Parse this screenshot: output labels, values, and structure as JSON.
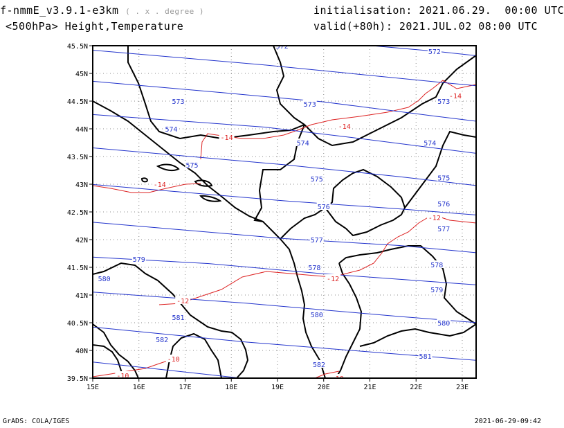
{
  "header": {
    "model": "f-nmmE_v3.9.1-e3km",
    "projection_note": "( . x . degree )",
    "field": "<500hPa> Height,Temperature",
    "init_label": "initialisation:",
    "init_value": "2021.06.29.  00:00 UTC",
    "valid_label": "valid(+80h):",
    "valid_value": "2021.JUL.02 08:00 UTC"
  },
  "footer": {
    "credit": "GrADS: COLA/IGES",
    "timestamp": "2021-06-29-09:42"
  },
  "map": {
    "lon_ticks": [
      "15E",
      "16E",
      "17E",
      "18E",
      "19E",
      "20E",
      "21E",
      "22E",
      "23E"
    ],
    "lat_ticks": [
      "39.5N",
      "40N",
      "40.5N",
      "41N",
      "41.5N",
      "42N",
      "42.5N",
      "43N",
      "43.5N",
      "44N",
      "44.5N",
      "45N",
      "45.5N"
    ],
    "colors": {
      "height": "#2233cc",
      "temperature": "#dd2222",
      "border": "#000000",
      "grid": "#888888"
    },
    "height_contours": [
      {
        "label": "572",
        "pts": [
          [
            0,
            0.06
          ],
          [
            0.4,
            0.02
          ],
          [
            0.9,
            -0.01
          ],
          [
            1,
            -0.03
          ]
        ],
        "labels_at": [
          [
            4.1,
            45.5
          ],
          [
            7.4,
            45.4
          ]
        ]
      },
      {
        "label": "573",
        "pts": [
          [
            0,
            0.1
          ],
          [
            0.45,
            0.08
          ],
          [
            0.9,
            0.02
          ],
          [
            1,
            0.01
          ]
        ],
        "labels_at": [
          [
            1.85,
            44.5
          ],
          [
            4.7,
            44.45
          ],
          [
            7.6,
            44.5
          ]
        ]
      },
      {
        "label": "574",
        "pts": [
          [
            0,
            0.12
          ],
          [
            0.35,
            0.1
          ],
          [
            0.6,
            0.08
          ],
          [
            0.9,
            -0.02
          ],
          [
            1,
            -0.05
          ]
        ],
        "labels_at": [
          [
            1.7,
            44.0
          ],
          [
            4.55,
            43.75
          ],
          [
            7.3,
            43.75
          ]
        ]
      },
      {
        "label": "575",
        "pts": [
          [
            0,
            0.1
          ],
          [
            0.45,
            0.12
          ],
          [
            0.7,
            0.05
          ],
          [
            1,
            -0.05
          ]
        ],
        "labels_at": [
          [
            2.15,
            43.35
          ],
          [
            4.85,
            43.1
          ],
          [
            7.6,
            43.12
          ]
        ]
      },
      {
        "label": "576",
        "pts": [
          [
            0,
            0.08
          ],
          [
            0.5,
            0.05
          ],
          [
            0.8,
            0.0
          ],
          [
            1,
            -0.05
          ]
        ],
        "labels_at": [
          [
            5.0,
            42.6
          ],
          [
            7.6,
            42.65
          ]
        ]
      },
      {
        "label": "577",
        "pts": [
          [
            0,
            0.0
          ],
          [
            0.5,
            -0.02
          ],
          [
            0.8,
            0.0
          ],
          [
            1,
            0.0
          ]
        ],
        "labels_at": [
          [
            4.85,
            42.0
          ],
          [
            7.6,
            42.2
          ]
        ]
      },
      {
        "label": "578",
        "pts": [
          [
            0,
            -0.1
          ],
          [
            0.5,
            -0.12
          ],
          [
            0.8,
            -0.08
          ],
          [
            1,
            -0.1
          ]
        ],
        "labels_at": [
          [
            4.8,
            41.5
          ],
          [
            7.45,
            41.55
          ]
        ]
      },
      {
        "label": "579",
        "pts": [
          [
            0,
            -0.15
          ],
          [
            0.3,
            -0.1
          ],
          [
            0.6,
            -0.12
          ],
          [
            1,
            -0.1
          ]
        ],
        "labels_at": [
          [
            1.0,
            41.65
          ],
          [
            7.45,
            41.1
          ]
        ]
      },
      {
        "label": "580",
        "pts": [
          [
            0,
            -0.2
          ],
          [
            0.4,
            -0.18
          ],
          [
            0.8,
            -0.2
          ],
          [
            1,
            -0.2
          ]
        ],
        "labels_at": [
          [
            0.25,
            41.3
          ],
          [
            4.85,
            40.65
          ],
          [
            7.6,
            40.5
          ]
        ]
      },
      {
        "label": "581",
        "pts": [
          [
            0,
            -0.25
          ],
          [
            0.4,
            -0.3
          ],
          [
            0.8,
            -0.3
          ],
          [
            1,
            -0.3
          ]
        ],
        "labels_at": [
          [
            1.85,
            40.6
          ],
          [
            7.2,
            39.9
          ]
        ]
      },
      {
        "label": "582",
        "pts": [
          [
            0,
            -0.3
          ],
          [
            0.5,
            -0.4
          ],
          [
            1,
            -0.42
          ]
        ],
        "labels_at": [
          [
            1.5,
            40.2
          ],
          [
            4.9,
            39.75
          ]
        ]
      }
    ],
    "temperature_contours": [
      {
        "label": "-14",
        "labels_at": [
          [
            1.45,
            43.0
          ],
          [
            2.9,
            43.85
          ],
          [
            5.45,
            44.05
          ],
          [
            7.85,
            44.6
          ]
        ]
      },
      {
        "label": "-12",
        "labels_at": [
          [
            1.95,
            40.9
          ],
          [
            5.2,
            41.3
          ],
          [
            7.4,
            42.4
          ]
        ]
      },
      {
        "label": "-10",
        "labels_at": [
          [
            0.65,
            39.55
          ],
          [
            1.75,
            39.85
          ],
          [
            5.3,
            39.5
          ]
        ]
      }
    ]
  }
}
